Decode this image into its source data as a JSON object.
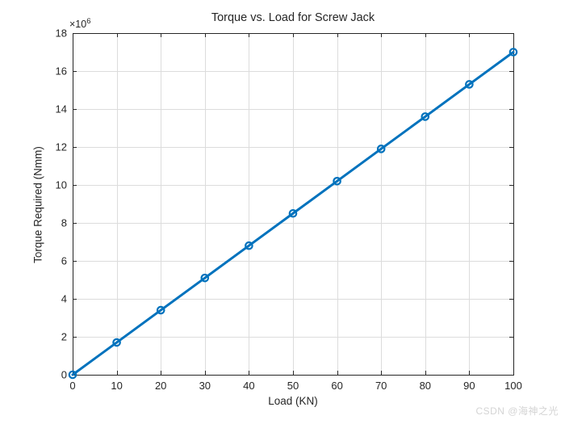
{
  "figure": {
    "exponent_base": "×10",
    "exponent_power": "6",
    "watermark": "CSDN @海神之光",
    "colors": {
      "line": "#0072BD",
      "axis": "#262626",
      "grid": "#dcdcdc",
      "tick_text": "#262626",
      "watermark": "#d4d4d4",
      "background": "#ffffff"
    }
  },
  "chart_data": {
    "type": "line",
    "title": "Torque vs. Load for Screw Jack",
    "xlabel": "Load (KN)",
    "ylabel": "Torque Required (Nmm)",
    "x": [
      0,
      10,
      20,
      30,
      40,
      50,
      60,
      70,
      80,
      90,
      100
    ],
    "y": [
      0,
      1700000,
      3400000,
      5100000,
      6800000,
      8500000,
      10200000,
      11900000,
      13600000,
      15300000,
      17000000
    ],
    "xlim": [
      0,
      100
    ],
    "ylim": [
      0,
      18000000
    ],
    "x_ticks": [
      0,
      10,
      20,
      30,
      40,
      50,
      60,
      70,
      80,
      90,
      100
    ],
    "x_tick_labels": [
      "0",
      "10",
      "20",
      "30",
      "40",
      "50",
      "60",
      "70",
      "80",
      "90",
      "100"
    ],
    "y_ticks": [
      0,
      2000000,
      4000000,
      6000000,
      8000000,
      10000000,
      12000000,
      14000000,
      16000000,
      18000000
    ],
    "y_tick_labels": [
      "0",
      "2",
      "4",
      "6",
      "8",
      "10",
      "12",
      "14",
      "16",
      "18"
    ],
    "y_tick_scale": 1000000,
    "grid": true,
    "legend": null,
    "marker": "open-circle",
    "line_width": 3
  }
}
